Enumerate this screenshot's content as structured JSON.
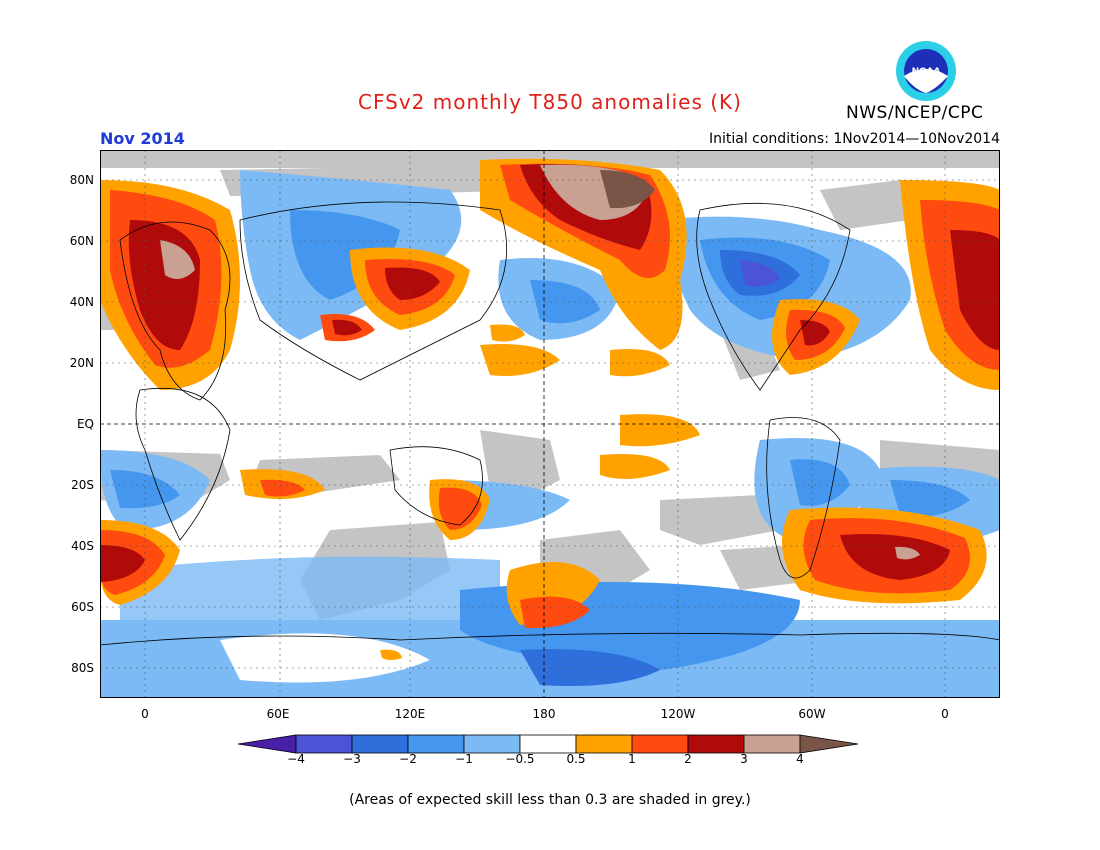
{
  "header": {
    "title": "CFSv2 monthly T850 anomalies (K)",
    "period": "Nov 2014",
    "initial_conditions": "Initial conditions: 1Nov2014—10Nov2014",
    "agency": "NWS/NCEP/CPC",
    "logo_text": "NOAA"
  },
  "map": {
    "lat_labels": [
      "80N",
      "60N",
      "40N",
      "20N",
      "EQ",
      "20S",
      "40S",
      "60S",
      "80S"
    ],
    "lon_labels": [
      "0",
      "60E",
      "120E",
      "180",
      "120W",
      "60W",
      "0"
    ]
  },
  "legend": {
    "labels": [
      "−4",
      "−3",
      "−2",
      "−1",
      "−0.5",
      "0.5",
      "1",
      "2",
      "3",
      "4"
    ],
    "colors": [
      "#4a1fa8",
      "#4a54d4",
      "#2f6fdc",
      "#4496ee",
      "#7cbaf5",
      "#ffffff",
      "#ffa200",
      "#ff4a10",
      "#b00a0a",
      "#c9a192",
      "#7a5447"
    ]
  },
  "footer": {
    "note": "(Areas of expected skill less than 0.3 are shaded in grey.)"
  }
}
